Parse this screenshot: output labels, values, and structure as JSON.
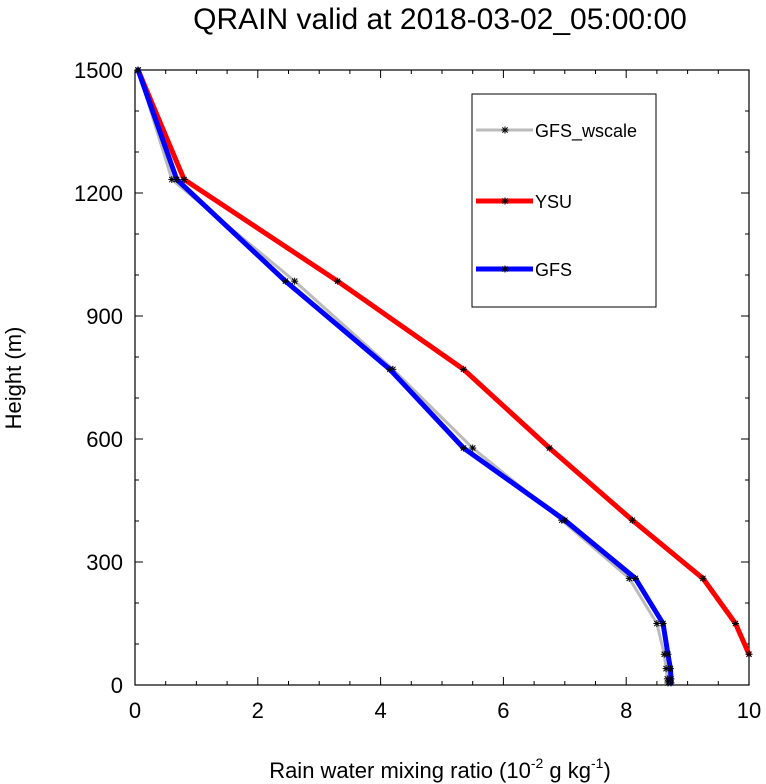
{
  "chart_data": {
    "type": "line",
    "title": "QRAIN valid at 2018-03-02_05:00:00",
    "xlabel": {
      "base": "Rain water mixing ratio (10",
      "exp1": "-2",
      "mid": " g kg",
      "exp2": "-1",
      "end": ")"
    },
    "ylabel": "Height (m)",
    "xlim": [
      0,
      10
    ],
    "ylim": [
      0,
      1500
    ],
    "xticks": [
      0,
      2,
      4,
      6,
      8,
      10
    ],
    "yticks": [
      0,
      300,
      600,
      900,
      1200,
      1500
    ],
    "grid": false,
    "legend_position": "top-right",
    "series": [
      {
        "name": "GFS_wscale",
        "color": "#bbbbbb",
        "points": [
          [
            0.05,
            1500
          ],
          [
            0.6,
            1233
          ],
          [
            2.6,
            985
          ],
          [
            4.2,
            770
          ],
          [
            5.5,
            578
          ],
          [
            6.95,
            402
          ],
          [
            8.05,
            260
          ],
          [
            8.5,
            150
          ],
          [
            8.62,
            75
          ],
          [
            8.65,
            40
          ],
          [
            8.67,
            15
          ],
          [
            8.68,
            5
          ]
        ]
      },
      {
        "name": "YSU",
        "color": "#ff0000",
        "points": [
          [
            0.05,
            1500
          ],
          [
            0.8,
            1233
          ],
          [
            3.3,
            985
          ],
          [
            5.35,
            770
          ],
          [
            6.75,
            578
          ],
          [
            8.1,
            402
          ],
          [
            9.25,
            260
          ],
          [
            9.78,
            150
          ],
          [
            10.0,
            75
          ]
        ]
      },
      {
        "name": "GFS",
        "color": "#0000ff",
        "points": [
          [
            0.05,
            1500
          ],
          [
            0.68,
            1233
          ],
          [
            2.45,
            985
          ],
          [
            4.15,
            770
          ],
          [
            5.35,
            578
          ],
          [
            7.0,
            402
          ],
          [
            8.15,
            260
          ],
          [
            8.6,
            150
          ],
          [
            8.68,
            75
          ],
          [
            8.72,
            40
          ],
          [
            8.73,
            15
          ],
          [
            8.73,
            5
          ]
        ]
      }
    ]
  }
}
